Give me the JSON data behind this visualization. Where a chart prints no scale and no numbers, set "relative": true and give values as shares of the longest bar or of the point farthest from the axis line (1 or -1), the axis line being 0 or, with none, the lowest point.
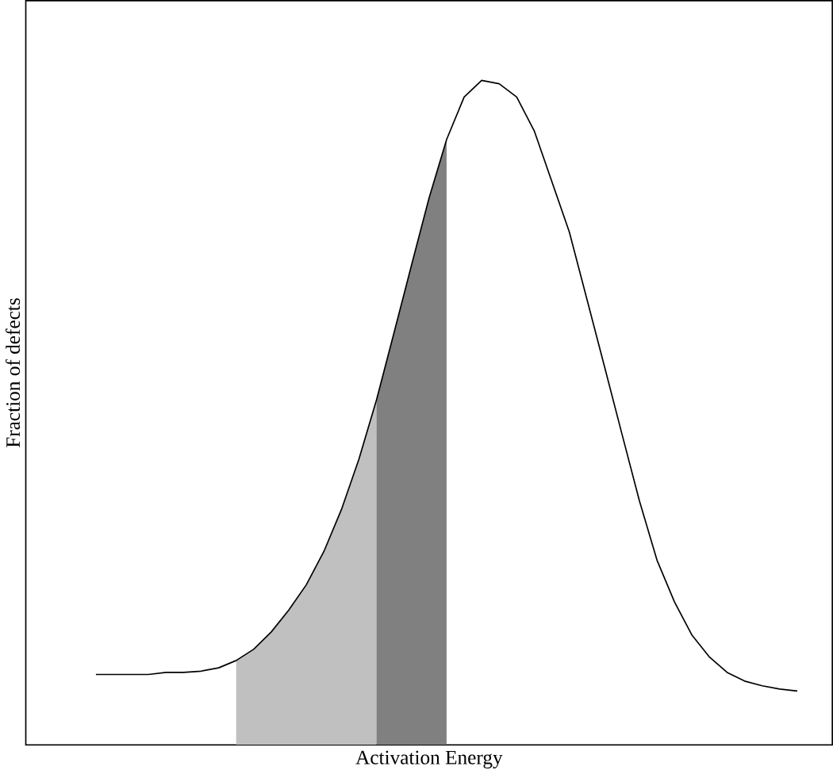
{
  "chart_data": {
    "type": "line",
    "relative": true,
    "xlabel": "Activation Energy",
    "ylabel": "Fraction of defects",
    "categories": [
      null,
      null,
      null,
      null,
      null,
      null,
      null,
      null,
      null,
      null,
      null,
      null,
      null,
      null,
      null,
      null,
      null,
      null,
      null,
      null,
      null,
      null,
      null,
      null,
      null,
      null,
      null,
      null,
      null,
      null,
      null,
      null,
      null,
      null,
      null,
      null,
      null,
      null,
      null,
      null,
      null
    ],
    "series": [
      {
        "type": "area",
        "color": "#c0c0c0",
        "values": [
          null,
          null,
          null,
          null,
          null,
          null,
          null,
          null,
          0.127,
          0.144,
          0.17,
          0.203,
          0.241,
          0.291,
          0.354,
          0.43,
          0.519,
          null,
          null,
          null,
          null,
          null,
          null,
          null,
          null,
          null,
          null,
          null,
          null,
          null,
          null,
          null,
          null,
          null,
          null,
          null,
          null,
          null,
          null,
          null,
          null
        ]
      },
      {
        "type": "area",
        "color": "#808080",
        "values": [
          null,
          null,
          null,
          null,
          null,
          null,
          null,
          null,
          null,
          null,
          null,
          null,
          null,
          null,
          null,
          null,
          0.519,
          0.62,
          0.722,
          0.823,
          0.911,
          null,
          null,
          null,
          null,
          null,
          null,
          null,
          null,
          null,
          null,
          null,
          null,
          null,
          null,
          null,
          null,
          null,
          null,
          null,
          null
        ]
      },
      {
        "color": "#000000",
        "values": [
          0.106,
          0.106,
          0.106,
          0.106,
          0.109,
          0.109,
          0.111,
          0.116,
          0.127,
          0.144,
          0.17,
          0.203,
          0.241,
          0.291,
          0.354,
          0.43,
          0.519,
          0.62,
          0.722,
          0.823,
          0.911,
          0.975,
          1.0,
          0.995,
          0.975,
          0.924,
          0.848,
          0.772,
          0.671,
          0.57,
          0.468,
          0.367,
          0.278,
          0.215,
          0.165,
          0.132,
          0.109,
          0.096,
          0.089,
          0.084,
          0.081
        ]
      }
    ]
  }
}
